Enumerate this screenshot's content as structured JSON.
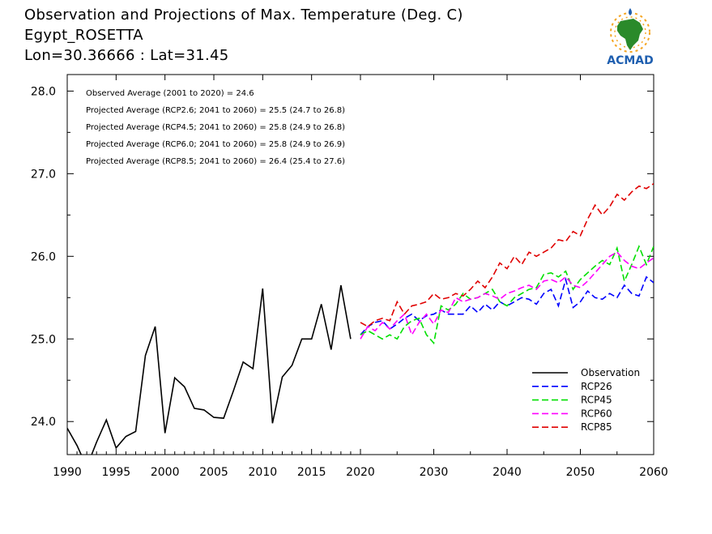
{
  "header": {
    "title_line1": "Observation and Projections of Max. Temperature (Deg. C)",
    "title_line2": "Egypt_ROSETTA",
    "title_line3": "Lon=30.36666 : Lat=31.45"
  },
  "logo": {
    "text": "ACMAD",
    "icon": "africa-map-logo-icon"
  },
  "colors": {
    "observation": "#000000",
    "rcp26": "#0000ff",
    "rcp45": "#00e000",
    "rcp60": "#ff00ff",
    "rcp85": "#e00000",
    "logo_orange": "#f5a623",
    "logo_blue": "#1f5fb0",
    "logo_green": "#2a8a2a"
  },
  "chart_data": {
    "type": "line",
    "xlim": [
      1990,
      2060
    ],
    "ylim": [
      23.6,
      28.2
    ],
    "x_ticks": [
      1990,
      1995,
      2000,
      2005,
      2010,
      2015,
      2020,
      2030,
      2040,
      2050,
      2060
    ],
    "y_ticks": [
      24.0,
      25.0,
      26.0,
      27.0,
      28.0
    ],
    "y_tick_labels": [
      "24.0",
      "25.0",
      "26.0",
      "27.0",
      "28.0"
    ],
    "annotations": [
      "Observed Average (2001 to 2020) = 24.6",
      "Projected Average (RCP2.6; 2041 to 2060) = 25.5 (24.7 to 26.8)",
      "Projected Average (RCP4.5; 2041 to 2060) = 25.8 (24.9 to 26.8)",
      "Projected Average (RCP6.0; 2041 to 2060) = 25.8 (24.9 to 26.9)",
      "Projected Average (RCP8.5; 2041 to 2060) = 26.4 (25.4 to 27.6)"
    ],
    "legend_position": "bottom-right",
    "series": [
      {
        "name": "Observation",
        "style": "solid",
        "color": "#000000",
        "x": [
          1990,
          1991,
          1992,
          1993,
          1994,
          1995,
          1996,
          1997,
          1998,
          1999,
          2000,
          2001,
          2002,
          2003,
          2004,
          2005,
          2006,
          2007,
          2008,
          2009,
          2010,
          2011,
          2012,
          2013,
          2014,
          2015,
          2016,
          2017,
          2018,
          2019
        ],
        "y": [
          23.92,
          23.71,
          23.45,
          23.75,
          24.02,
          23.68,
          23.82,
          23.88,
          24.8,
          25.15,
          23.86,
          24.53,
          24.42,
          24.16,
          24.14,
          24.05,
          24.04,
          24.37,
          24.72,
          24.64,
          25.61,
          23.98,
          24.54,
          24.68,
          25.0,
          25.0,
          25.42,
          24.87,
          25.65,
          25.0
        ]
      },
      {
        "name": "RCP26",
        "style": "dashed",
        "color": "#0000ff",
        "x": [
          2020,
          2021,
          2022,
          2023,
          2024,
          2025,
          2026,
          2027,
          2028,
          2029,
          2030,
          2031,
          2032,
          2033,
          2034,
          2035,
          2036,
          2037,
          2038,
          2039,
          2040,
          2041,
          2042,
          2043,
          2044,
          2045,
          2046,
          2047,
          2048,
          2049,
          2050,
          2051,
          2052,
          2053,
          2054,
          2055,
          2056,
          2057,
          2058,
          2059,
          2060
        ],
        "y": [
          25.05,
          25.15,
          25.2,
          25.22,
          25.12,
          25.18,
          25.25,
          25.3,
          25.22,
          25.28,
          25.3,
          25.35,
          25.3,
          25.3,
          25.3,
          25.4,
          25.32,
          25.42,
          25.35,
          25.45,
          25.4,
          25.45,
          25.5,
          25.48,
          25.42,
          25.55,
          25.6,
          25.4,
          25.72,
          25.38,
          25.45,
          25.58,
          25.5,
          25.48,
          25.55,
          25.5,
          25.65,
          25.55,
          25.52,
          25.75,
          25.68
        ]
      },
      {
        "name": "RCP45",
        "style": "dashed",
        "color": "#00e000",
        "x": [
          2020,
          2021,
          2022,
          2023,
          2024,
          2025,
          2026,
          2027,
          2028,
          2029,
          2030,
          2031,
          2032,
          2033,
          2034,
          2035,
          2036,
          2037,
          2038,
          2039,
          2040,
          2041,
          2042,
          2043,
          2044,
          2045,
          2046,
          2047,
          2048,
          2049,
          2050,
          2051,
          2052,
          2053,
          2054,
          2055,
          2056,
          2057,
          2058,
          2059,
          2060
        ],
        "y": [
          25.05,
          25.1,
          25.05,
          25.0,
          25.05,
          25.0,
          25.15,
          25.22,
          25.25,
          25.05,
          24.95,
          25.4,
          25.35,
          25.42,
          25.55,
          25.48,
          25.5,
          25.55,
          25.6,
          25.45,
          25.4,
          25.5,
          25.55,
          25.6,
          25.62,
          25.78,
          25.8,
          25.75,
          25.82,
          25.6,
          25.72,
          25.8,
          25.88,
          25.95,
          25.9,
          26.1,
          25.7,
          25.9,
          26.12,
          25.9,
          26.12
        ]
      },
      {
        "name": "RCP60",
        "style": "dashed",
        "color": "#ff00ff",
        "x": [
          2020,
          2021,
          2022,
          2023,
          2024,
          2025,
          2026,
          2027,
          2028,
          2029,
          2030,
          2031,
          2032,
          2033,
          2034,
          2035,
          2036,
          2037,
          2038,
          2039,
          2040,
          2041,
          2042,
          2043,
          2044,
          2045,
          2046,
          2047,
          2048,
          2049,
          2050,
          2051,
          2052,
          2053,
          2054,
          2055,
          2056,
          2057,
          2058,
          2059,
          2060
        ],
        "y": [
          25.0,
          25.15,
          25.1,
          25.2,
          25.12,
          25.22,
          25.3,
          25.05,
          25.2,
          25.3,
          25.18,
          25.35,
          25.32,
          25.5,
          25.45,
          25.48,
          25.5,
          25.55,
          25.52,
          25.48,
          25.55,
          25.58,
          25.62,
          25.65,
          25.6,
          25.7,
          25.72,
          25.68,
          25.75,
          25.65,
          25.62,
          25.7,
          25.8,
          25.9,
          26.0,
          26.05,
          25.95,
          25.88,
          25.85,
          25.92,
          25.98
        ]
      },
      {
        "name": "RCP85",
        "style": "dashed",
        "color": "#e00000",
        "x": [
          2020,
          2021,
          2022,
          2023,
          2024,
          2025,
          2026,
          2027,
          2028,
          2029,
          2030,
          2031,
          2032,
          2033,
          2034,
          2035,
          2036,
          2037,
          2038,
          2039,
          2040,
          2041,
          2042,
          2043,
          2044,
          2045,
          2046,
          2047,
          2048,
          2049,
          2050,
          2051,
          2052,
          2053,
          2054,
          2055,
          2056,
          2057,
          2058,
          2059,
          2060
        ],
        "y": [
          25.2,
          25.15,
          25.22,
          25.25,
          25.22,
          25.45,
          25.3,
          25.4,
          25.42,
          25.45,
          25.55,
          25.48,
          25.5,
          25.55,
          25.52,
          25.6,
          25.7,
          25.62,
          25.75,
          25.92,
          25.85,
          26.0,
          25.9,
          26.05,
          26.0,
          26.05,
          26.1,
          26.2,
          26.18,
          26.3,
          26.25,
          26.45,
          26.62,
          26.5,
          26.6,
          26.75,
          26.68,
          26.78,
          26.85,
          26.82,
          26.88
        ]
      }
    ]
  }
}
